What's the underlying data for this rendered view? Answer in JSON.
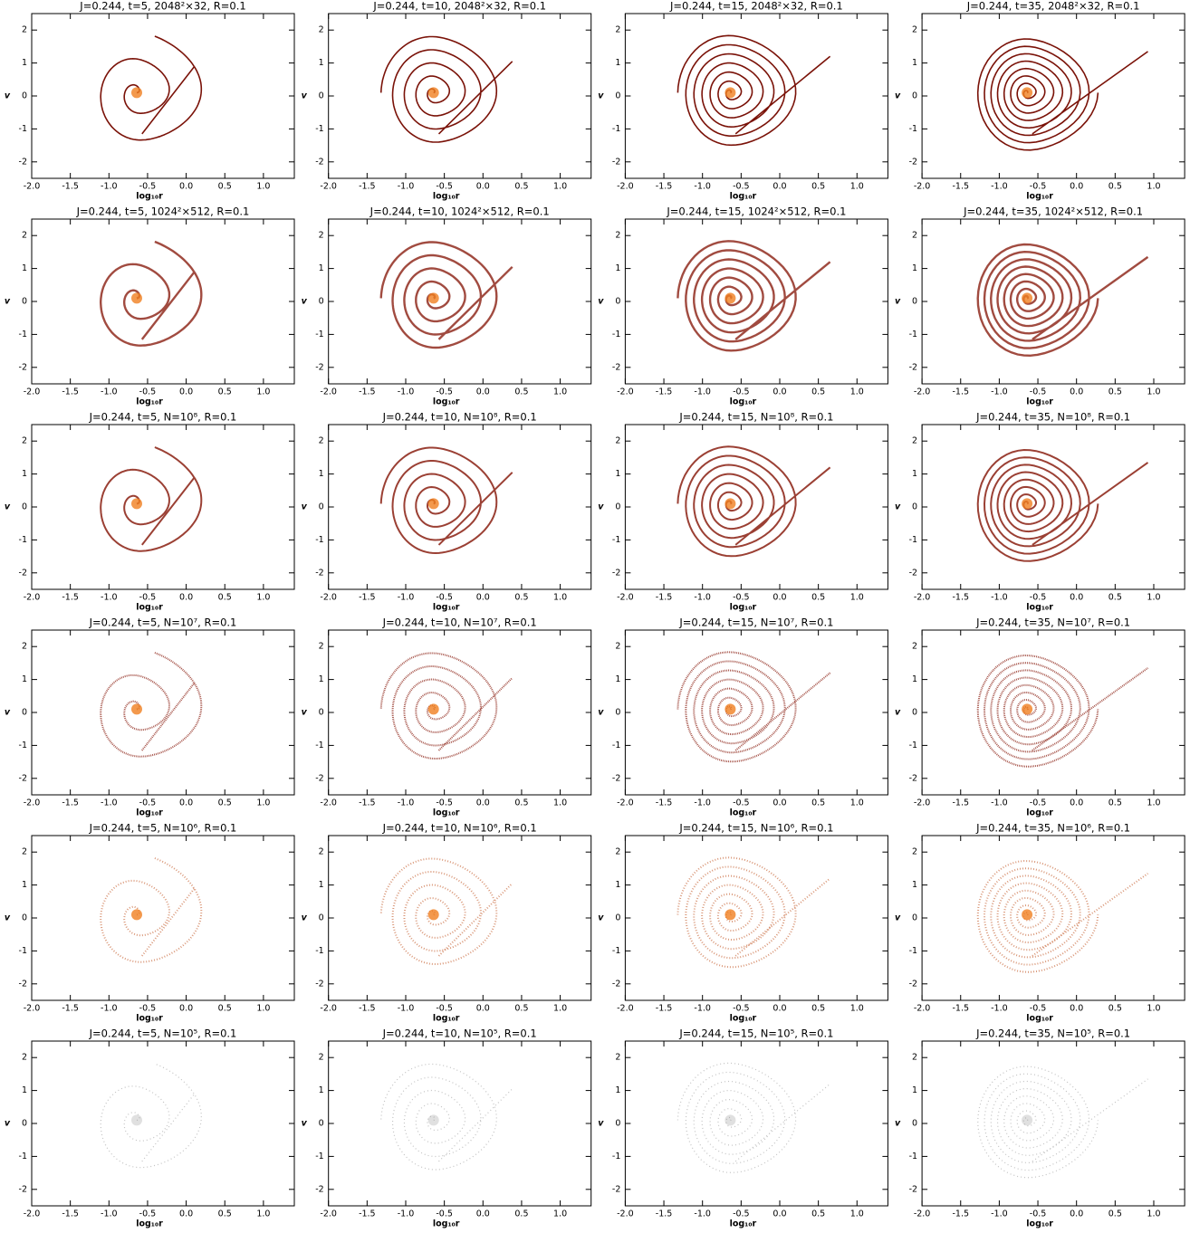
{
  "chart_data": [
    {
      "type": "phase-space",
      "title": "J=0.244,  t=5,  2048²×32,  R=0.1",
      "xlabel": "log₁₀r",
      "ylabel": "v",
      "xlim": [
        -2,
        1.4
      ],
      "ylim": [
        -2.5,
        2.5
      ],
      "xticks": [
        {
          "value": -2,
          "label": "-2.0"
        },
        -1.5,
        {
          "value": -1,
          "label": "-1.0"
        },
        -0.5,
        {
          "value": 0,
          "label": "0.0"
        },
        0.5,
        {
          "value": 1,
          "label": "1.0"
        }
      ],
      "yticks": [
        -2,
        -1,
        0,
        1,
        2
      ]
    },
    {
      "type": "phase-space",
      "title": "J=0.244,  t=10,  2048²×32,  R=0.1",
      "xlabel": "log₁₀r",
      "ylabel": "v",
      "xlim": [
        -2,
        1.4
      ],
      "ylim": [
        -2.5,
        2.5
      ],
      "xticks": [
        {
          "value": -2,
          "label": "-2.0"
        },
        -1.5,
        {
          "value": -1,
          "label": "-1.0"
        },
        -0.5,
        {
          "value": 0,
          "label": "0.0"
        },
        0.5,
        {
          "value": 1,
          "label": "1.0"
        }
      ],
      "yticks": [
        -2,
        -1,
        0,
        1,
        2
      ]
    },
    {
      "type": "phase-space",
      "title": "J=0.244,  t=15,  2048²×32,  R=0.1",
      "xlabel": "log₁₀r",
      "ylabel": "v",
      "xlim": [
        -2,
        1.4
      ],
      "ylim": [
        -2.5,
        2.5
      ],
      "xticks": [
        {
          "value": -2,
          "label": "-2.0"
        },
        -1.5,
        {
          "value": -1,
          "label": "-1.0"
        },
        -0.5,
        {
          "value": 0,
          "label": "0.0"
        },
        0.5,
        {
          "value": 1,
          "label": "1.0"
        }
      ],
      "yticks": [
        -2,
        -1,
        0,
        1,
        2
      ]
    },
    {
      "type": "phase-space",
      "title": "J=0.244,  t=35,  2048²×32,  R=0.1",
      "xlabel": "log₁₀r",
      "ylabel": "v",
      "xlim": [
        -2,
        1.4
      ],
      "ylim": [
        -2.5,
        2.5
      ],
      "xticks": [
        {
          "value": -2,
          "label": "-2.0"
        },
        -1.5,
        {
          "value": -1,
          "label": "-1.0"
        },
        -0.5,
        {
          "value": 0,
          "label": "0.0"
        },
        0.5,
        {
          "value": 1,
          "label": "1.0"
        }
      ],
      "yticks": [
        -2,
        -1,
        0,
        1,
        2
      ]
    },
    {
      "type": "phase-space",
      "title": "J=0.244,  t=5,  1024²×512,  R=0.1",
      "xlabel": "log₁₀r",
      "ylabel": "v",
      "xlim": [
        -2,
        1.4
      ],
      "ylim": [
        -2.5,
        2.5
      ],
      "xticks": [
        {
          "value": -2,
          "label": "-2.0"
        },
        -1.5,
        {
          "value": -1,
          "label": "-1.0"
        },
        -0.5,
        {
          "value": 0,
          "label": "0.0"
        },
        0.5,
        {
          "value": 1,
          "label": "1.0"
        }
      ],
      "yticks": [
        -2,
        -1,
        0,
        1,
        2
      ]
    },
    {
      "type": "phase-space",
      "title": "J=0.244,  t=10,  1024²×512,  R=0.1",
      "xlabel": "log₁₀r",
      "ylabel": "v",
      "xlim": [
        -2,
        1.4
      ],
      "ylim": [
        -2.5,
        2.5
      ],
      "xticks": [
        {
          "value": -2,
          "label": "-2.0"
        },
        -1.5,
        {
          "value": -1,
          "label": "-1.0"
        },
        -0.5,
        {
          "value": 0,
          "label": "0.0"
        },
        0.5,
        {
          "value": 1,
          "label": "1.0"
        }
      ],
      "yticks": [
        -2,
        -1,
        0,
        1,
        2
      ]
    },
    {
      "type": "phase-space",
      "title": "J=0.244,  t=15,  1024²×512,  R=0.1",
      "xlabel": "log₁₀r",
      "ylabel": "v",
      "xlim": [
        -2,
        1.4
      ],
      "ylim": [
        -2.5,
        2.5
      ],
      "xticks": [
        {
          "value": -2,
          "label": "-2.0"
        },
        -1.5,
        {
          "value": -1,
          "label": "-1.0"
        },
        -0.5,
        {
          "value": 0,
          "label": "0.0"
        },
        0.5,
        {
          "value": 1,
          "label": "1.0"
        }
      ],
      "yticks": [
        -2,
        -1,
        0,
        1,
        2
      ]
    },
    {
      "type": "phase-space",
      "title": "J=0.244,  t=35,  1024²×512,  R=0.1",
      "xlabel": "log₁₀r",
      "ylabel": "v",
      "xlim": [
        -2,
        1.4
      ],
      "ylim": [
        -2.5,
        2.5
      ],
      "xticks": [
        {
          "value": -2,
          "label": "-2.0"
        },
        -1.5,
        {
          "value": -1,
          "label": "-1.0"
        },
        -0.5,
        {
          "value": 0,
          "label": "0.0"
        },
        0.5,
        {
          "value": 1,
          "label": "1.0"
        }
      ],
      "yticks": [
        -2,
        -1,
        0,
        1,
        2
      ]
    },
    {
      "type": "phase-space",
      "title": "J=0.244,  t=5,  N=10⁸,  R=0.1",
      "xlabel": "log₁₀r",
      "ylabel": "v",
      "xlim": [
        -2,
        1.4
      ],
      "ylim": [
        -2.5,
        2.5
      ],
      "xticks": [
        {
          "value": -2,
          "label": "-2.0"
        },
        -1.5,
        {
          "value": -1,
          "label": "-1.0"
        },
        -0.5,
        {
          "value": 0,
          "label": "0.0"
        },
        0.5,
        {
          "value": 1,
          "label": "1.0"
        }
      ],
      "yticks": [
        -2,
        -1,
        0,
        1,
        2
      ]
    },
    {
      "type": "phase-space",
      "title": "J=0.244,  t=10,  N=10⁸,  R=0.1",
      "xlabel": "log₁₀r",
      "ylabel": "v",
      "xlim": [
        -2,
        1.4
      ],
      "ylim": [
        -2.5,
        2.5
      ],
      "xticks": [
        {
          "value": -2,
          "label": "-2.0"
        },
        -1.5,
        {
          "value": -1,
          "label": "-1.0"
        },
        -0.5,
        {
          "value": 0,
          "label": "0.0"
        },
        0.5,
        {
          "value": 1,
          "label": "1.0"
        }
      ],
      "yticks": [
        -2,
        -1,
        0,
        1,
        2
      ]
    },
    {
      "type": "phase-space",
      "title": "J=0.244,  t=15,  N=10⁸,  R=0.1",
      "xlabel": "log₁₀r",
      "ylabel": "v",
      "xlim": [
        -2,
        1.4
      ],
      "ylim": [
        -2.5,
        2.5
      ],
      "xticks": [
        {
          "value": -2,
          "label": "-2.0"
        },
        -1.5,
        {
          "value": -1,
          "label": "-1.0"
        },
        -0.5,
        {
          "value": 0,
          "label": "0.0"
        },
        0.5,
        {
          "value": 1,
          "label": "1.0"
        }
      ],
      "yticks": [
        -2,
        -1,
        0,
        1,
        2
      ]
    },
    {
      "type": "phase-space",
      "title": "J=0.244,  t=35,  N=10⁸,  R=0.1",
      "xlabel": "log₁₀r",
      "ylabel": "v",
      "xlim": [
        -2,
        1.4
      ],
      "ylim": [
        -2.5,
        2.5
      ],
      "xticks": [
        {
          "value": -2,
          "label": "-2.0"
        },
        -1.5,
        {
          "value": -1,
          "label": "-1.0"
        },
        -0.5,
        {
          "value": 0,
          "label": "0.0"
        },
        0.5,
        {
          "value": 1,
          "label": "1.0"
        }
      ],
      "yticks": [
        -2,
        -1,
        0,
        1,
        2
      ]
    },
    {
      "type": "phase-space",
      "title": "J=0.244,  t=5,  N=10⁷,  R=0.1",
      "xlabel": "log₁₀r",
      "ylabel": "v",
      "xlim": [
        -2,
        1.4
      ],
      "ylim": [
        -2.5,
        2.5
      ],
      "xticks": [
        {
          "value": -2,
          "label": "-2.0"
        },
        -1.5,
        {
          "value": -1,
          "label": "-1.0"
        },
        -0.5,
        {
          "value": 0,
          "label": "0.0"
        },
        0.5,
        {
          "value": 1,
          "label": "1.0"
        }
      ],
      "yticks": [
        -2,
        -1,
        0,
        1,
        2
      ]
    },
    {
      "type": "phase-space",
      "title": "J=0.244,  t=10,  N=10⁷,  R=0.1",
      "xlabel": "log₁₀r",
      "ylabel": "v",
      "xlim": [
        -2,
        1.4
      ],
      "ylim": [
        -2.5,
        2.5
      ],
      "xticks": [
        {
          "value": -2,
          "label": "-2.0"
        },
        -1.5,
        {
          "value": -1,
          "label": "-1.0"
        },
        -0.5,
        {
          "value": 0,
          "label": "0.0"
        },
        0.5,
        {
          "value": 1,
          "label": "1.0"
        }
      ],
      "yticks": [
        -2,
        -1,
        0,
        1,
        2
      ]
    },
    {
      "type": "phase-space",
      "title": "J=0.244,  t=15,  N=10⁷,  R=0.1",
      "xlabel": "log₁₀r",
      "ylabel": "v",
      "xlim": [
        -2,
        1.4
      ],
      "ylim": [
        -2.5,
        2.5
      ],
      "xticks": [
        {
          "value": -2,
          "label": "-2.0"
        },
        -1.5,
        {
          "value": -1,
          "label": "-1.0"
        },
        -0.5,
        {
          "value": 0,
          "label": "0.0"
        },
        0.5,
        {
          "value": 1,
          "label": "1.0"
        }
      ],
      "yticks": [
        -2,
        -1,
        0,
        1,
        2
      ]
    },
    {
      "type": "phase-space",
      "title": "J=0.244,  t=35,  N=10⁷,  R=0.1",
      "xlabel": "log₁₀r",
      "ylabel": "v",
      "xlim": [
        -2,
        1.4
      ],
      "ylim": [
        -2.5,
        2.5
      ],
      "xticks": [
        {
          "value": -2,
          "label": "-2.0"
        },
        -1.5,
        {
          "value": -1,
          "label": "-1.0"
        },
        -0.5,
        {
          "value": 0,
          "label": "0.0"
        },
        0.5,
        {
          "value": 1,
          "label": "1.0"
        }
      ],
      "yticks": [
        -2,
        -1,
        0,
        1,
        2
      ]
    },
    {
      "type": "phase-space",
      "title": "J=0.244,  t=5,  N=10⁶,  R=0.1",
      "xlabel": "log₁₀r",
      "ylabel": "v",
      "xlim": [
        -2,
        1.4
      ],
      "ylim": [
        -2.5,
        2.5
      ],
      "xticks": [
        {
          "value": -2,
          "label": "-2.0"
        },
        -1.5,
        {
          "value": -1,
          "label": "-1.0"
        },
        -0.5,
        {
          "value": 0,
          "label": "0.0"
        },
        0.5,
        {
          "value": 1,
          "label": "1.0"
        }
      ],
      "yticks": [
        -2,
        -1,
        0,
        1,
        2
      ]
    },
    {
      "type": "phase-space",
      "title": "J=0.244,  t=10,  N=10⁶,  R=0.1",
      "xlabel": "log₁₀r",
      "ylabel": "v",
      "xlim": [
        -2,
        1.4
      ],
      "ylim": [
        -2.5,
        2.5
      ],
      "xticks": [
        {
          "value": -2,
          "label": "-2.0"
        },
        -1.5,
        {
          "value": -1,
          "label": "-1.0"
        },
        -0.5,
        {
          "value": 0,
          "label": "0.0"
        },
        0.5,
        {
          "value": 1,
          "label": "1.0"
        }
      ],
      "yticks": [
        -2,
        -1,
        0,
        1,
        2
      ]
    },
    {
      "type": "phase-space",
      "title": "J=0.244,  t=15,  N=10⁶,  R=0.1",
      "xlabel": "log₁₀r",
      "ylabel": "v",
      "xlim": [
        -2,
        1.4
      ],
      "ylim": [
        -2.5,
        2.5
      ],
      "xticks": [
        {
          "value": -2,
          "label": "-2.0"
        },
        -1.5,
        {
          "value": -1,
          "label": "-1.0"
        },
        -0.5,
        {
          "value": 0,
          "label": "0.0"
        },
        0.5,
        {
          "value": 1,
          "label": "1.0"
        }
      ],
      "yticks": [
        -2,
        -1,
        0,
        1,
        2
      ]
    },
    {
      "type": "phase-space",
      "title": "J=0.244,  t=35,  N=10⁶,  R=0.1",
      "xlabel": "log₁₀r",
      "ylabel": "v",
      "xlim": [
        -2,
        1.4
      ],
      "ylim": [
        -2.5,
        2.5
      ],
      "xticks": [
        {
          "value": -2,
          "label": "-2.0"
        },
        -1.5,
        {
          "value": -1,
          "label": "-1.0"
        },
        -0.5,
        {
          "value": 0,
          "label": "0.0"
        },
        0.5,
        {
          "value": 1,
          "label": "1.0"
        }
      ],
      "yticks": [
        -2,
        -1,
        0,
        1,
        2
      ]
    },
    {
      "type": "phase-space",
      "title": "J=0.244,  t=5,  N=10⁵,  R=0.1",
      "xlabel": "log₁₀r",
      "ylabel": "v",
      "xlim": [
        -2,
        1.4
      ],
      "ylim": [
        -2.5,
        2.5
      ],
      "xticks": [
        {
          "value": -2,
          "label": "-2.0"
        },
        -1.5,
        {
          "value": -1,
          "label": "-1.0"
        },
        -0.5,
        {
          "value": 0,
          "label": "0.0"
        },
        0.5,
        {
          "value": 1,
          "label": "1.0"
        }
      ],
      "yticks": [
        -2,
        -1,
        0,
        1,
        2
      ]
    },
    {
      "type": "phase-space",
      "title": "J=0.244,  t=10,  N=10⁵,  R=0.1",
      "xlabel": "log₁₀r",
      "ylabel": "v",
      "xlim": [
        -2,
        1.4
      ],
      "ylim": [
        -2.5,
        2.5
      ],
      "xticks": [
        {
          "value": -2,
          "label": "-2.0"
        },
        -1.5,
        {
          "value": -1,
          "label": "-1.0"
        },
        -0.5,
        {
          "value": 0,
          "label": "0.0"
        },
        0.5,
        {
          "value": 1,
          "label": "1.0"
        }
      ],
      "yticks": [
        -2,
        -1,
        0,
        1,
        2
      ]
    },
    {
      "type": "phase-space",
      "title": "J=0.244,  t=15,  N=10⁵,  R=0.1",
      "xlabel": "log₁₀r",
      "ylabel": "v",
      "xlim": [
        -2,
        1.4
      ],
      "ylim": [
        -2.5,
        2.5
      ],
      "xticks": [
        {
          "value": -2,
          "label": "-2.0"
        },
        -1.5,
        {
          "value": -1,
          "label": "-1.0"
        },
        -0.5,
        {
          "value": 0,
          "label": "0.0"
        },
        0.5,
        {
          "value": 1,
          "label": "1.0"
        }
      ],
      "yticks": [
        -2,
        -1,
        0,
        1,
        2
      ]
    },
    {
      "type": "phase-space",
      "title": "J=0.244,  t=35,  N=10⁵,  R=0.1",
      "xlabel": "log₁₀r",
      "ylabel": "v",
      "xlim": [
        -2,
        1.4
      ],
      "ylim": [
        -2.5,
        2.5
      ],
      "xticks": [
        {
          "value": -2,
          "label": "-2.0"
        },
        -1.5,
        {
          "value": -1,
          "label": "-1.0"
        },
        -0.5,
        {
          "value": 0,
          "label": "0.0"
        },
        0.5,
        {
          "value": 1,
          "label": "1.0"
        }
      ],
      "yticks": [
        -2,
        -1,
        0,
        1,
        2
      ]
    }
  ]
}
